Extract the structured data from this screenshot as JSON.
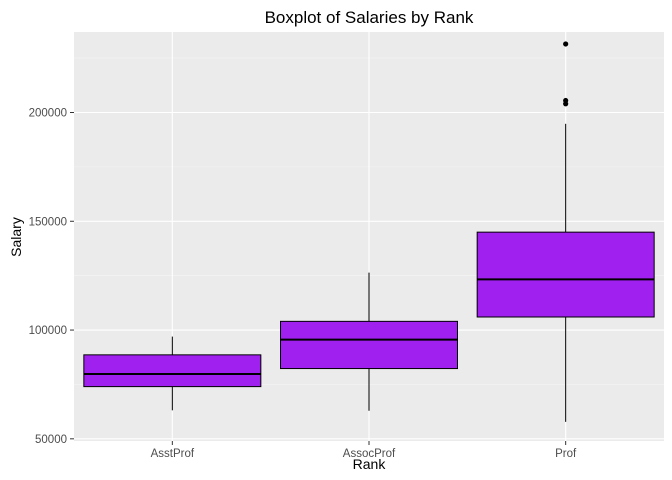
{
  "chart_data": {
    "type": "boxplot",
    "title": "Boxplot of Salaries by Rank",
    "xlabel": "Rank",
    "ylabel": "Salary",
    "categories": [
      "AsstProf",
      "AssocProf",
      "Prof"
    ],
    "y_ticks": [
      50000,
      100000,
      150000,
      200000
    ],
    "y_tick_labels": [
      "50000",
      "100000",
      "150000",
      "200000"
    ],
    "ylim": [
      49000,
      237000
    ],
    "grid": true,
    "legend": "none",
    "boxes": [
      {
        "category": "AsstProf",
        "lower_whisker": 63100,
        "q1": 74000,
        "median": 79800,
        "q3": 88600,
        "upper_whisker": 97000,
        "outliers": []
      },
      {
        "category": "AssocProf",
        "lower_whisker": 62900,
        "q1": 82300,
        "median": 95600,
        "q3": 104000,
        "upper_whisker": 126400,
        "outliers": []
      },
      {
        "category": "Prof",
        "lower_whisker": 57800,
        "q1": 106000,
        "median": 123300,
        "q3": 145000,
        "upper_whisker": 194800,
        "outliers": [
          204000,
          205500,
          231500
        ]
      }
    ],
    "colors": {
      "panel_background": "#EBEBEB",
      "grid_major": "#FFFFFF",
      "grid_minor": "#F5F5F5",
      "box_fill": "#A020F0",
      "box_outline": "#000000",
      "whisker": "#000000",
      "outlier": "#000000"
    }
  }
}
